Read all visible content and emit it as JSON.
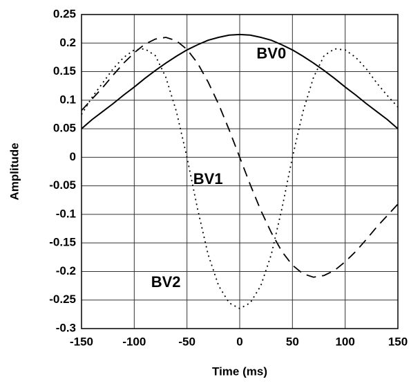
{
  "chart_data": {
    "type": "line",
    "xlabel": "Time (ms)",
    "ylabel": "Amplitude",
    "x": [
      -150,
      -140,
      -130,
      -120,
      -110,
      -100,
      -90,
      -80,
      -70,
      -60,
      -50,
      -40,
      -30,
      -20,
      -10,
      0,
      10,
      20,
      30,
      40,
      50,
      60,
      70,
      80,
      90,
      100,
      110,
      120,
      130,
      140,
      150
    ],
    "series": [
      {
        "name": "BV0",
        "color": "#000000",
        "dash": "solid",
        "values": [
          0.05,
          0.066,
          0.08,
          0.094,
          0.109,
          0.123,
          0.138,
          0.152,
          0.165,
          0.177,
          0.188,
          0.197,
          0.205,
          0.21,
          0.214,
          0.215,
          0.214,
          0.21,
          0.205,
          0.197,
          0.188,
          0.177,
          0.165,
          0.152,
          0.138,
          0.123,
          0.109,
          0.094,
          0.08,
          0.066,
          0.05
        ]
      },
      {
        "name": "BV1",
        "color": "#000000",
        "dash": "dashed",
        "values": [
          0.082,
          0.102,
          0.122,
          0.144,
          0.165,
          0.183,
          0.198,
          0.207,
          0.21,
          0.204,
          0.189,
          0.165,
          0.132,
          0.093,
          0.048,
          0,
          -0.048,
          -0.093,
          -0.132,
          -0.165,
          -0.189,
          -0.204,
          -0.21,
          -0.207,
          -0.198,
          -0.183,
          -0.165,
          -0.144,
          -0.122,
          -0.102,
          -0.082
        ]
      },
      {
        "name": "BV2",
        "color": "#000000",
        "dash": "dotted",
        "values": [
          0.075,
          0.105,
          0.13,
          0.155,
          0.175,
          0.188,
          0.19,
          0.178,
          0.14,
          0.08,
          0,
          -0.09,
          -0.17,
          -0.225,
          -0.255,
          -0.265,
          -0.255,
          -0.225,
          -0.17,
          -0.09,
          0,
          0.08,
          0.14,
          0.178,
          0.19,
          0.188,
          0.175,
          0.155,
          0.13,
          0.108,
          0.088
        ]
      }
    ],
    "xlim": [
      -150,
      150
    ],
    "xticks": [
      -150,
      -100,
      -50,
      0,
      50,
      100,
      150
    ],
    "ylim": [
      -0.3,
      0.25
    ],
    "yticks": [
      -0.3,
      -0.25,
      -0.2,
      -0.15,
      -0.1,
      -0.05,
      0,
      0.05,
      0.1,
      0.15,
      0.2,
      0.25
    ],
    "grid": true
  }
}
